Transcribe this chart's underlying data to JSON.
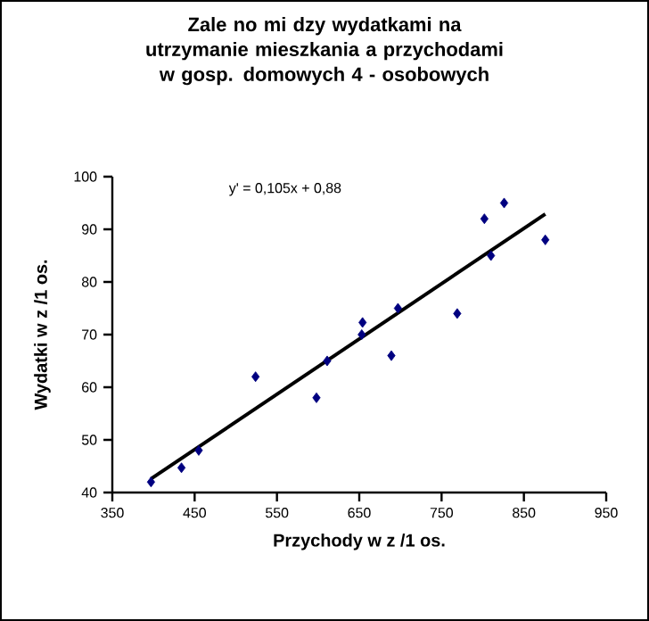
{
  "chart_data": {
    "type": "scatter",
    "title": "Zale  no    mi  dzy wydatkami na utrzymanie mieszkania a przychodami w gosp. domowych 4 - osobowych",
    "xlabel": "Przychody w z /1 os.",
    "ylabel": "Wydatki w z /1 os.",
    "annotations": [
      "y' = 0,105x + 0,88"
    ],
    "xlim": [
      350,
      950
    ],
    "xticks": [
      350,
      450,
      550,
      650,
      750,
      850,
      950
    ],
    "ylim": [
      40,
      100
    ],
    "yticks": [
      40,
      50,
      60,
      70,
      80,
      90,
      100
    ],
    "series": [
      {
        "marker": "diamond",
        "color": "#000080",
        "x": [
          397,
          434,
          455,
          524,
          598,
          611,
          653,
          654,
          689,
          697,
          769,
          802,
          810,
          826,
          876
        ],
        "values": [
          42,
          44.7,
          48,
          62,
          58,
          65,
          70,
          72.3,
          66,
          75,
          74,
          92,
          85,
          95,
          88
        ]
      },
      {
        "type": "line",
        "color": "#000000",
        "x": [
          397,
          876
        ],
        "values": [
          42.6,
          92.9
        ]
      }
    ]
  }
}
